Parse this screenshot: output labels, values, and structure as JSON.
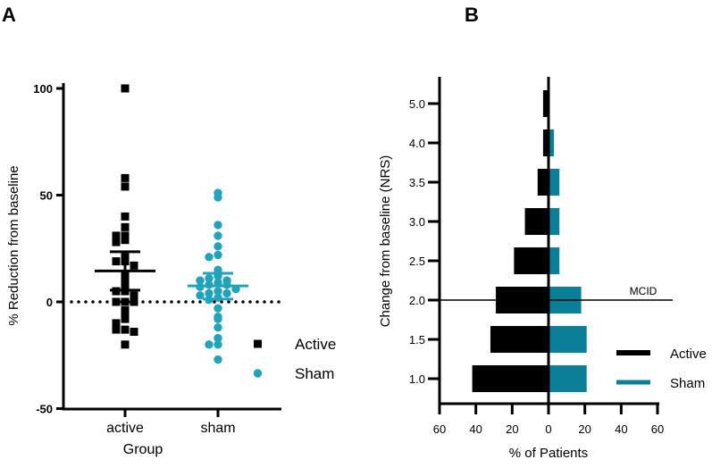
{
  "chart_data": [
    {
      "panel_label": "A",
      "type": "scatter",
      "xlabel": "Group",
      "ylabel": "% Reduction from baseline",
      "categories": [
        "active",
        "sham"
      ],
      "yticks": [
        "100",
        "50",
        "0",
        "-50"
      ],
      "ylim": [
        -50,
        100
      ],
      "reference_line": 0,
      "legend": {
        "placement": "right",
        "entries": [
          "Active",
          "Sham"
        ]
      },
      "series": [
        {
          "name": "Active",
          "color": "#000000",
          "marker": "square",
          "values": [
            100,
            58,
            54,
            40,
            35,
            31,
            31,
            29,
            28,
            21,
            19,
            19,
            17,
            13,
            10,
            8,
            5,
            5,
            3,
            0,
            0,
            0,
            -4,
            -7,
            -8,
            -10,
            -13,
            -13,
            -14,
            -20
          ],
          "mean": 14.5,
          "error_upper": 23.5,
          "error_lower": 5.5
        },
        {
          "name": "Sham",
          "color": "#23a3bb",
          "marker": "circle",
          "values": [
            51,
            49,
            36,
            31,
            26,
            22,
            21,
            15,
            12,
            11,
            10,
            10,
            9,
            8,
            8,
            7,
            6,
            5,
            4,
            4,
            3,
            2,
            1,
            -3,
            -7,
            -8,
            -12,
            -17,
            -20,
            -20,
            -27
          ],
          "mean": 7.5,
          "error_upper": 13.4,
          "error_lower": 1.3
        }
      ]
    },
    {
      "panel_label": "B",
      "type": "bar",
      "orientation": "horizontal-butterfly",
      "xlabel": "% of Patients",
      "ylabel": "Change from baseline (NRS)",
      "categories": [
        "5.0",
        "4.0",
        "3.5",
        "3.0",
        "2.5",
        "2.0",
        "1.5",
        "1.0"
      ],
      "xticks": [
        "60",
        "40",
        "20",
        "0",
        "20",
        "40",
        "60"
      ],
      "xlim": [
        -60,
        60
      ],
      "reference_line": {
        "category": "2.0",
        "label": "MCID"
      },
      "legend": {
        "placement": "bottom-right",
        "entries": [
          "Active",
          "Sham"
        ]
      },
      "series": [
        {
          "name": "Active",
          "color": "#000000",
          "side": "left",
          "values": [
            3,
            3,
            6,
            13,
            19,
            29,
            32,
            42
          ]
        },
        {
          "name": "Sham",
          "color": "#0b7f97",
          "side": "right",
          "values": [
            0,
            3,
            6,
            6,
            6,
            18,
            21,
            21
          ]
        }
      ]
    }
  ]
}
